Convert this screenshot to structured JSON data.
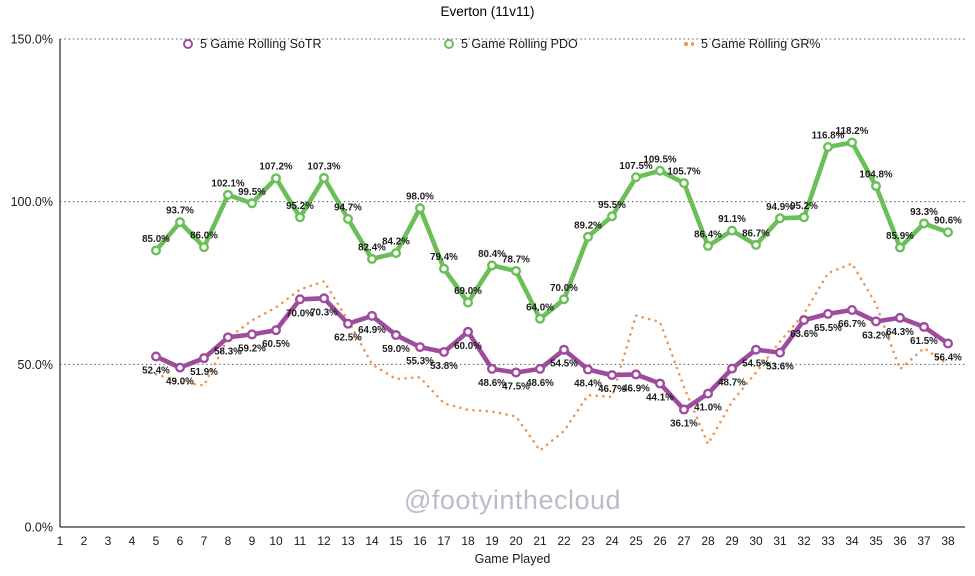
{
  "watermark": "@footyinthecloud",
  "chart_data": {
    "type": "line",
    "title": "Everton (11v11)",
    "xlabel": "Game Played",
    "ylabel": "",
    "xlim": [
      1,
      38
    ],
    "ylim": [
      0,
      150
    ],
    "grid": "horizontal dotted at each y tick",
    "legend_position": "top",
    "x_ticks": [
      1,
      2,
      3,
      4,
      5,
      6,
      7,
      8,
      9,
      10,
      11,
      12,
      13,
      14,
      15,
      16,
      17,
      18,
      19,
      20,
      21,
      22,
      23,
      24,
      25,
      26,
      27,
      28,
      29,
      30,
      31,
      32,
      33,
      34,
      35,
      36,
      37,
      38
    ],
    "y_ticks": [
      {
        "value": 0,
        "label": "0.0%"
      },
      {
        "value": 50,
        "label": "50.0%"
      },
      {
        "value": 100,
        "label": "100.0%"
      },
      {
        "value": 150,
        "label": "150.0%"
      }
    ],
    "series": [
      {
        "name": "5 Game Rolling SoTR",
        "color": "#9e4b9e",
        "style": "solid-with-markers",
        "show_point_labels": true,
        "label_side": "below",
        "x_start": 5,
        "values": [
          52.4,
          49.0,
          51.9,
          58.3,
          59.2,
          60.5,
          70.0,
          70.3,
          62.5,
          64.9,
          59.0,
          55.3,
          53.8,
          60.0,
          48.6,
          47.5,
          48.6,
          54.5,
          48.4,
          46.7,
          46.9,
          44.1,
          36.1,
          41.0,
          48.7,
          54.5,
          53.6,
          63.6,
          65.5,
          66.7,
          63.2,
          64.3,
          61.5,
          56.4
        ]
      },
      {
        "name": "5 Game Rolling PDO",
        "color": "#6abf58",
        "style": "solid-with-markers",
        "show_point_labels": true,
        "label_side": "above",
        "x_start": 5,
        "values": [
          85.0,
          93.7,
          86.0,
          102.1,
          99.5,
          107.2,
          95.2,
          107.3,
          94.7,
          82.4,
          84.2,
          98.0,
          79.4,
          69.0,
          80.4,
          78.7,
          64.0,
          70.0,
          89.2,
          95.5,
          107.5,
          109.5,
          105.7,
          86.4,
          91.1,
          86.7,
          94.9,
          95.2,
          116.8,
          118.2,
          104.8,
          85.9,
          93.3,
          90.6
        ]
      },
      {
        "name": "5 Game Rolling GR%",
        "color": "#ec9651",
        "style": "dotted",
        "show_point_labels": false,
        "label_side": "none",
        "x_start": 5,
        "values_estimated": true,
        "values": [
          47,
          44.5,
          43.5,
          58,
          63.5,
          67.5,
          73,
          75.5,
          63.5,
          50,
          45.5,
          46,
          38,
          36,
          35.5,
          34,
          23.5,
          29.5,
          40.5,
          40,
          65,
          63,
          43,
          25.5,
          38.5,
          47.5,
          57,
          65.5,
          78,
          81,
          68.5,
          48.5,
          55,
          50
        ]
      }
    ]
  },
  "style": {
    "axis_color": "#333333",
    "grid_color": "#595959",
    "tick_text_color": "#1a1a1a",
    "point_label_color": "#1c1c1c",
    "watermark_color": "#b9bdc8"
  }
}
